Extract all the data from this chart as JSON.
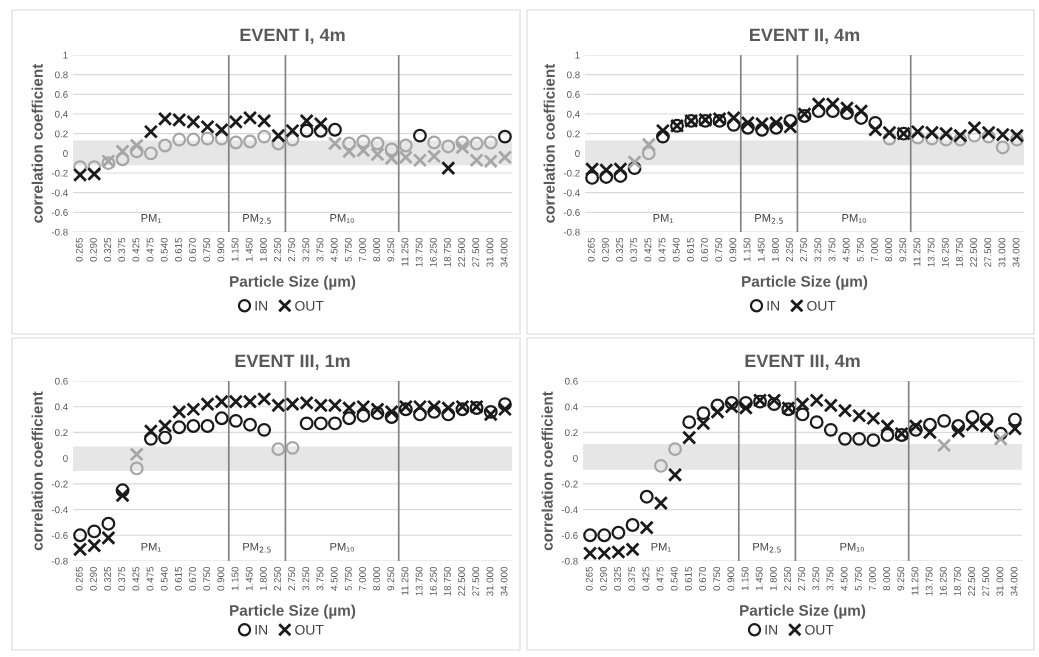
{
  "chart_data": [
    {
      "type": "scatter",
      "title": "EVENT I, 4m",
      "xlabel": "Particle Size (µm)",
      "ylabel": "correlation coefficient",
      "categories": [
        "0.265",
        "0.290",
        "0.325",
        "0.375",
        "0.425",
        "0.475",
        "0.540",
        "0.615",
        "0.670",
        "0.750",
        "0.900",
        "1.150",
        "1.450",
        "1.800",
        "2.250",
        "2.750",
        "3.250",
        "3.750",
        "4.500",
        "5.750",
        "7.000",
        "8.000",
        "9.250",
        "11.250",
        "13.750",
        "16.250",
        "18.750",
        "22.500",
        "27.500",
        "31.000",
        "34.000"
      ],
      "series": [
        {
          "name": "IN",
          "marker": "circle",
          "color": "#1a1a1a",
          "values": [
            -0.14,
            -0.14,
            -0.1,
            -0.06,
            0.02,
            0.0,
            0.08,
            0.14,
            0.14,
            0.15,
            0.15,
            0.11,
            0.12,
            0.17,
            0.1,
            0.14,
            0.23,
            0.23,
            0.24,
            0.1,
            0.12,
            0.1,
            0.04,
            0.08,
            0.18,
            0.11,
            0.07,
            0.11,
            0.1,
            0.11,
            0.17
          ],
          "colors": [
            "#a6a6a6",
            "#a6a6a6",
            "#a6a6a6",
            "#a6a6a6",
            "#a6a6a6",
            "#a6a6a6",
            "#a6a6a6",
            "#a6a6a6",
            "#a6a6a6",
            "#a6a6a6",
            "#a6a6a6",
            "#a6a6a6",
            "#a6a6a6",
            "#a6a6a6",
            "#a6a6a6",
            "#a6a6a6",
            "#1a1a1a",
            "#1a1a1a",
            "#1a1a1a",
            "#a6a6a6",
            "#a6a6a6",
            "#a6a6a6",
            "#a6a6a6",
            "#a6a6a6",
            "#1a1a1a",
            "#a6a6a6",
            "#a6a6a6",
            "#a6a6a6",
            "#a6a6a6",
            "#a6a6a6",
            "#1a1a1a"
          ]
        },
        {
          "name": "OUT",
          "marker": "cross",
          "color": "#1a1a1a",
          "values": [
            -0.22,
            -0.21,
            -0.08,
            0.02,
            0.08,
            0.22,
            0.35,
            0.34,
            0.32,
            0.27,
            0.24,
            0.32,
            0.36,
            0.33,
            0.18,
            0.23,
            0.33,
            0.3,
            0.1,
            0.02,
            0.03,
            -0.01,
            -0.05,
            -0.04,
            -0.07,
            -0.03,
            -0.15,
            0.06,
            -0.07,
            -0.08,
            -0.04
          ],
          "colors": [
            "#1a1a1a",
            "#1a1a1a",
            "#a6a6a6",
            "#a6a6a6",
            "#a6a6a6",
            "#1a1a1a",
            "#1a1a1a",
            "#1a1a1a",
            "#1a1a1a",
            "#1a1a1a",
            "#1a1a1a",
            "#1a1a1a",
            "#1a1a1a",
            "#1a1a1a",
            "#1a1a1a",
            "#1a1a1a",
            "#1a1a1a",
            "#1a1a1a",
            "#a6a6a6",
            "#a6a6a6",
            "#a6a6a6",
            "#a6a6a6",
            "#a6a6a6",
            "#a6a6a6",
            "#a6a6a6",
            "#a6a6a6",
            "#1a1a1a",
            "#a6a6a6",
            "#a6a6a6",
            "#a6a6a6",
            "#a6a6a6"
          ]
        }
      ],
      "ylim": [
        -0.8,
        1
      ],
      "yticks": [
        -0.8,
        -0.6,
        -0.4,
        -0.2,
        0,
        0.2,
        {
          "value": 0.4,
          "label": "0,4"
        },
        0.6,
        0.8,
        1
      ],
      "grid": "y",
      "legend": "bottom",
      "bands": [
        {
          "axis": "y",
          "from": -0.12,
          "to": 0.13,
          "color": "#e6e6e6"
        }
      ],
      "annotations": [
        "PM₁",
        "PM$_{2.5}$",
        "PM₁₀"
      ]
    },
    {
      "type": "scatter",
      "title": "EVENT II, 4m",
      "xlabel": "Particle Size (µm)",
      "ylabel": "correlation coefficient",
      "categories": [
        "0.265",
        "0.290",
        "0.325",
        "0.375",
        "0.425",
        "0.475",
        "0.540",
        "0.615",
        "0.670",
        "0.750",
        "0.900",
        "1.150",
        "1.450",
        "1.800",
        "2.250",
        "2.750",
        "3.250",
        "3.750",
        "4.500",
        "5.750",
        "7.000",
        "8.000",
        "9.250",
        "11.250",
        "13.750",
        "16.250",
        "18.750",
        "22.500",
        "27.500",
        "31.000",
        "34.000"
      ],
      "series": [
        {
          "name": "IN",
          "marker": "circle",
          "color": "#1a1a1a",
          "values": [
            -0.25,
            -0.24,
            -0.23,
            -0.15,
            0.0,
            0.17,
            0.28,
            0.33,
            0.33,
            0.33,
            0.29,
            0.26,
            0.24,
            0.26,
            0.33,
            0.38,
            0.43,
            0.43,
            0.41,
            0.36,
            0.31,
            0.15,
            0.2,
            0.16,
            0.15,
            0.14,
            0.14,
            0.18,
            0.17,
            0.06,
            0.14
          ],
          "colors": [
            "#1a1a1a",
            "#1a1a1a",
            "#1a1a1a",
            "#1a1a1a",
            "#a6a6a6",
            "#1a1a1a",
            "#1a1a1a",
            "#1a1a1a",
            "#1a1a1a",
            "#1a1a1a",
            "#1a1a1a",
            "#1a1a1a",
            "#1a1a1a",
            "#1a1a1a",
            "#1a1a1a",
            "#1a1a1a",
            "#1a1a1a",
            "#1a1a1a",
            "#1a1a1a",
            "#1a1a1a",
            "#1a1a1a",
            "#a6a6a6",
            "#1a1a1a",
            "#a6a6a6",
            "#a6a6a6",
            "#a6a6a6",
            "#a6a6a6",
            "#a6a6a6",
            "#a6a6a6",
            "#a6a6a6",
            "#a6a6a6"
          ]
        },
        {
          "name": "OUT",
          "marker": "cross",
          "color": "#1a1a1a",
          "values": [
            -0.16,
            -0.17,
            -0.16,
            -0.09,
            0.09,
            0.23,
            0.28,
            0.33,
            0.34,
            0.35,
            0.36,
            0.31,
            0.3,
            0.31,
            0.27,
            0.4,
            0.5,
            0.5,
            0.46,
            0.43,
            0.24,
            0.21,
            0.2,
            0.22,
            0.21,
            0.2,
            0.18,
            0.26,
            0.21,
            0.19,
            0.18
          ],
          "colors": [
            "#1a1a1a",
            "#1a1a1a",
            "#1a1a1a",
            "#a6a6a6",
            "#a6a6a6",
            "#1a1a1a",
            "#1a1a1a",
            "#1a1a1a",
            "#1a1a1a",
            "#1a1a1a",
            "#1a1a1a",
            "#1a1a1a",
            "#1a1a1a",
            "#1a1a1a",
            "#1a1a1a",
            "#1a1a1a",
            "#1a1a1a",
            "#1a1a1a",
            "#1a1a1a",
            "#1a1a1a",
            "#1a1a1a",
            "#1a1a1a",
            "#1a1a1a",
            "#1a1a1a",
            "#1a1a1a",
            "#1a1a1a",
            "#1a1a1a",
            "#1a1a1a",
            "#1a1a1a",
            "#1a1a1a",
            "#1a1a1a"
          ]
        }
      ],
      "ylim": [
        -0.8,
        1
      ],
      "yticks": [
        -0.8,
        -0.6,
        -0.4,
        -0.2,
        0,
        0.2,
        {
          "value": 0.4,
          "label": "0,4"
        },
        0.6,
        0.8,
        1
      ],
      "grid": "y",
      "legend": "bottom",
      "bands": [
        {
          "axis": "y",
          "from": -0.12,
          "to": 0.13,
          "color": "#e6e6e6"
        }
      ],
      "annotations": [
        "PM₁",
        "PM$_{2.5}$",
        "PM₁₀"
      ]
    },
    {
      "type": "scatter",
      "title": "EVENT III, 1m",
      "xlabel": "Particle Size (µm)",
      "ylabel": "correlation coefficient",
      "categories": [
        "0.265",
        "0.290",
        "0.325",
        "0.375",
        "0.425",
        "0.475",
        "0.540",
        "0.615",
        "0.670",
        "0.750",
        "0.900",
        "1.150",
        "1.450",
        "1.800",
        "2.250",
        "2.750",
        "3.250",
        "3.750",
        "4.500",
        "5.750",
        "7.000",
        "8.000",
        "9.250",
        "11.250",
        "13.750",
        "16.250",
        "18.750",
        "22.500",
        "27.500",
        "31.000",
        "34.000"
      ],
      "series": [
        {
          "name": "IN",
          "marker": "circle",
          "color": "#1a1a1a",
          "values": [
            -0.6,
            -0.57,
            -0.51,
            -0.25,
            -0.08,
            0.15,
            0.16,
            0.24,
            0.25,
            0.25,
            0.31,
            0.29,
            0.26,
            0.22,
            0.07,
            0.08,
            0.27,
            0.27,
            0.27,
            0.31,
            0.33,
            0.35,
            0.32,
            0.38,
            0.34,
            0.36,
            0.34,
            0.38,
            0.39,
            0.36,
            0.42
          ],
          "colors": [
            "#1a1a1a",
            "#1a1a1a",
            "#1a1a1a",
            "#1a1a1a",
            "#a6a6a6",
            "#1a1a1a",
            "#1a1a1a",
            "#1a1a1a",
            "#1a1a1a",
            "#1a1a1a",
            "#1a1a1a",
            "#1a1a1a",
            "#1a1a1a",
            "#1a1a1a",
            "#a6a6a6",
            "#a6a6a6",
            "#1a1a1a",
            "#1a1a1a",
            "#1a1a1a",
            "#1a1a1a",
            "#1a1a1a",
            "#1a1a1a",
            "#1a1a1a",
            "#1a1a1a",
            "#1a1a1a",
            "#1a1a1a",
            "#1a1a1a",
            "#1a1a1a",
            "#1a1a1a",
            "#1a1a1a",
            "#1a1a1a"
          ]
        },
        {
          "name": "OUT",
          "marker": "cross",
          "color": "#1a1a1a",
          "values": [
            -0.71,
            -0.68,
            -0.62,
            -0.29,
            0.03,
            0.21,
            0.25,
            0.36,
            0.38,
            0.42,
            0.44,
            0.44,
            0.44,
            0.46,
            0.41,
            0.42,
            0.43,
            0.41,
            0.41,
            0.39,
            0.4,
            0.38,
            0.36,
            0.4,
            0.4,
            0.4,
            0.39,
            0.4,
            0.4,
            0.34,
            0.38
          ],
          "colors": [
            "#1a1a1a",
            "#1a1a1a",
            "#1a1a1a",
            "#1a1a1a",
            "#a6a6a6",
            "#1a1a1a",
            "#1a1a1a",
            "#1a1a1a",
            "#1a1a1a",
            "#1a1a1a",
            "#1a1a1a",
            "#1a1a1a",
            "#1a1a1a",
            "#1a1a1a",
            "#1a1a1a",
            "#1a1a1a",
            "#1a1a1a",
            "#1a1a1a",
            "#1a1a1a",
            "#1a1a1a",
            "#1a1a1a",
            "#1a1a1a",
            "#1a1a1a",
            "#1a1a1a",
            "#1a1a1a",
            "#1a1a1a",
            "#1a1a1a",
            "#1a1a1a",
            "#1a1a1a",
            "#1a1a1a",
            "#1a1a1a"
          ]
        }
      ],
      "ylim": [
        -0.8,
        0.6
      ],
      "yticks": [
        -0.8,
        -0.6,
        -0.4,
        -0.2,
        0,
        0.2,
        0.4,
        0.6
      ],
      "grid": "y",
      "legend": "bottom",
      "bands": [
        {
          "axis": "y",
          "from": -0.1,
          "to": 0.09,
          "color": "#e6e6e6"
        }
      ],
      "annotations": [
        "PM₁",
        "PM$_{2.5}$",
        "PM₁₀"
      ]
    },
    {
      "type": "scatter",
      "title": "EVENT III, 4m",
      "xlabel": "Particle Size (µm)",
      "ylabel": "correlation coefficient",
      "categories": [
        "0.265",
        "0.290",
        "0.325",
        "0.375",
        "0.425",
        "0.475",
        "0.540",
        "0.615",
        "0.670",
        "0.750",
        "0.900",
        "1.150",
        "1.450",
        "1.800",
        "2.250",
        "2.750",
        "3.250",
        "3.750",
        "4.500",
        "5.750",
        "7.000",
        "8.000",
        "9.250",
        "11.250",
        "13.750",
        "16.250",
        "18.750",
        "22.500",
        "27.500",
        "31.000",
        "34.000"
      ],
      "series": [
        {
          "name": "IN",
          "marker": "circle",
          "color": "#1a1a1a",
          "values": [
            -0.6,
            -0.6,
            -0.58,
            -0.52,
            -0.3,
            -0.06,
            0.07,
            0.28,
            0.35,
            0.41,
            0.43,
            0.43,
            0.44,
            0.42,
            0.38,
            0.34,
            0.28,
            0.22,
            0.15,
            0.15,
            0.14,
            0.18,
            0.18,
            0.22,
            0.26,
            0.29,
            0.25,
            0.32,
            0.3,
            0.19,
            0.3
          ],
          "colors": [
            "#1a1a1a",
            "#1a1a1a",
            "#1a1a1a",
            "#1a1a1a",
            "#1a1a1a",
            "#a6a6a6",
            "#a6a6a6",
            "#1a1a1a",
            "#1a1a1a",
            "#1a1a1a",
            "#1a1a1a",
            "#1a1a1a",
            "#1a1a1a",
            "#1a1a1a",
            "#1a1a1a",
            "#1a1a1a",
            "#1a1a1a",
            "#1a1a1a",
            "#1a1a1a",
            "#1a1a1a",
            "#1a1a1a",
            "#1a1a1a",
            "#1a1a1a",
            "#1a1a1a",
            "#1a1a1a",
            "#1a1a1a",
            "#1a1a1a",
            "#1a1a1a",
            "#1a1a1a",
            "#1a1a1a",
            "#1a1a1a"
          ]
        },
        {
          "name": "OUT",
          "marker": "cross",
          "color": "#1a1a1a",
          "values": [
            -0.74,
            -0.74,
            -0.73,
            -0.71,
            -0.54,
            -0.35,
            -0.13,
            0.16,
            0.27,
            0.36,
            0.4,
            0.39,
            0.45,
            0.45,
            0.39,
            0.42,
            0.45,
            0.41,
            0.37,
            0.33,
            0.31,
            0.25,
            0.19,
            0.25,
            0.2,
            0.1,
            0.21,
            0.26,
            0.25,
            0.15,
            0.23
          ],
          "colors": [
            "#1a1a1a",
            "#1a1a1a",
            "#1a1a1a",
            "#1a1a1a",
            "#1a1a1a",
            "#1a1a1a",
            "#1a1a1a",
            "#1a1a1a",
            "#1a1a1a",
            "#1a1a1a",
            "#1a1a1a",
            "#1a1a1a",
            "#1a1a1a",
            "#1a1a1a",
            "#1a1a1a",
            "#1a1a1a",
            "#1a1a1a",
            "#1a1a1a",
            "#1a1a1a",
            "#1a1a1a",
            "#1a1a1a",
            "#1a1a1a",
            "#1a1a1a",
            "#1a1a1a",
            "#1a1a1a",
            "#a6a6a6",
            "#1a1a1a",
            "#1a1a1a",
            "#1a1a1a",
            "#a6a6a6",
            "#1a1a1a"
          ]
        }
      ],
      "ylim": [
        -0.8,
        0.6
      ],
      "yticks": [
        -0.8,
        -0.6,
        -0.4,
        -0.2,
        0,
        0.2,
        0.4,
        0.6
      ],
      "grid": "y",
      "legend": "bottom",
      "bands": [
        {
          "axis": "y",
          "from": -0.09,
          "to": 0.11,
          "color": "#e6e6e6"
        }
      ],
      "annotations": [
        "PM₁",
        "PM$_{2.5}$",
        "PM₁₀"
      ]
    }
  ]
}
